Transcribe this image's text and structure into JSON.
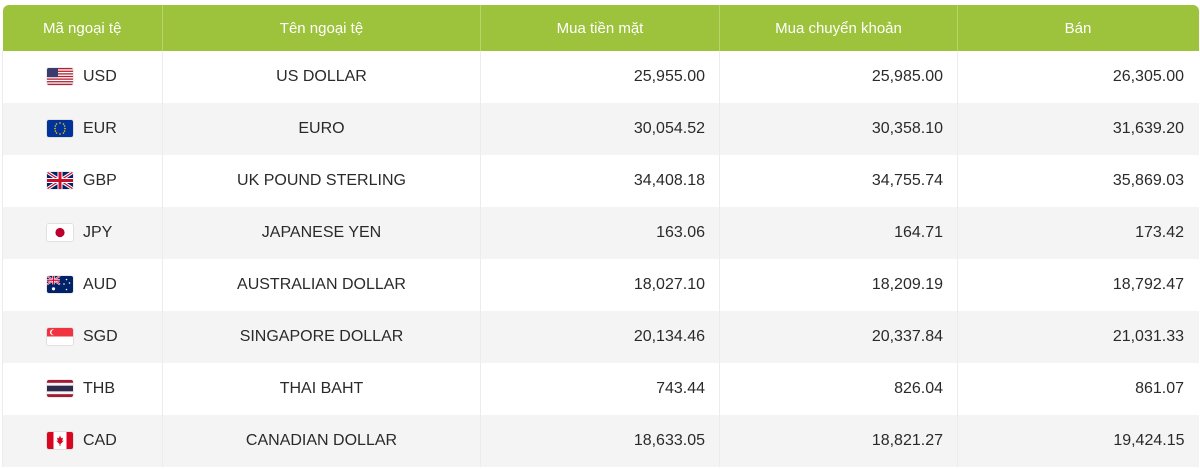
{
  "table": {
    "headers": {
      "code": "Mã ngoại tệ",
      "name": "Tên ngoại tệ",
      "cash_buy": "Mua tiền mặt",
      "transfer_buy": "Mua chuyển khoản",
      "sell": "Bán"
    },
    "rows": [
      {
        "flag": "us-flag-icon",
        "code": "USD",
        "name": "US DOLLAR",
        "cash_buy": "25,955.00",
        "transfer_buy": "25,985.00",
        "sell": "26,305.00"
      },
      {
        "flag": "eu-flag-icon",
        "code": "EUR",
        "name": "EURO",
        "cash_buy": "30,054.52",
        "transfer_buy": "30,358.10",
        "sell": "31,639.20"
      },
      {
        "flag": "uk-flag-icon",
        "code": "GBP",
        "name": "UK POUND STERLING",
        "cash_buy": "34,408.18",
        "transfer_buy": "34,755.74",
        "sell": "35,869.03"
      },
      {
        "flag": "jp-flag-icon",
        "code": "JPY",
        "name": "JAPANESE YEN",
        "cash_buy": "163.06",
        "transfer_buy": "164.71",
        "sell": "173.42"
      },
      {
        "flag": "au-flag-icon",
        "code": "AUD",
        "name": "AUSTRALIAN DOLLAR",
        "cash_buy": "18,027.10",
        "transfer_buy": "18,209.19",
        "sell": "18,792.47"
      },
      {
        "flag": "sg-flag-icon",
        "code": "SGD",
        "name": "SINGAPORE DOLLAR",
        "cash_buy": "20,134.46",
        "transfer_buy": "20,337.84",
        "sell": "21,031.33"
      },
      {
        "flag": "th-flag-icon",
        "code": "THB",
        "name": "THAI BAHT",
        "cash_buy": "743.44",
        "transfer_buy": "826.04",
        "sell": "861.07"
      },
      {
        "flag": "ca-flag-icon",
        "code": "CAD",
        "name": "CANADIAN DOLLAR",
        "cash_buy": "18,633.05",
        "transfer_buy": "18,821.27",
        "sell": "19,424.15"
      }
    ]
  },
  "colors": {
    "header_bg": "#9dc23c",
    "header_text": "#ffffff",
    "row_alt_bg": "#f4f4f4"
  }
}
